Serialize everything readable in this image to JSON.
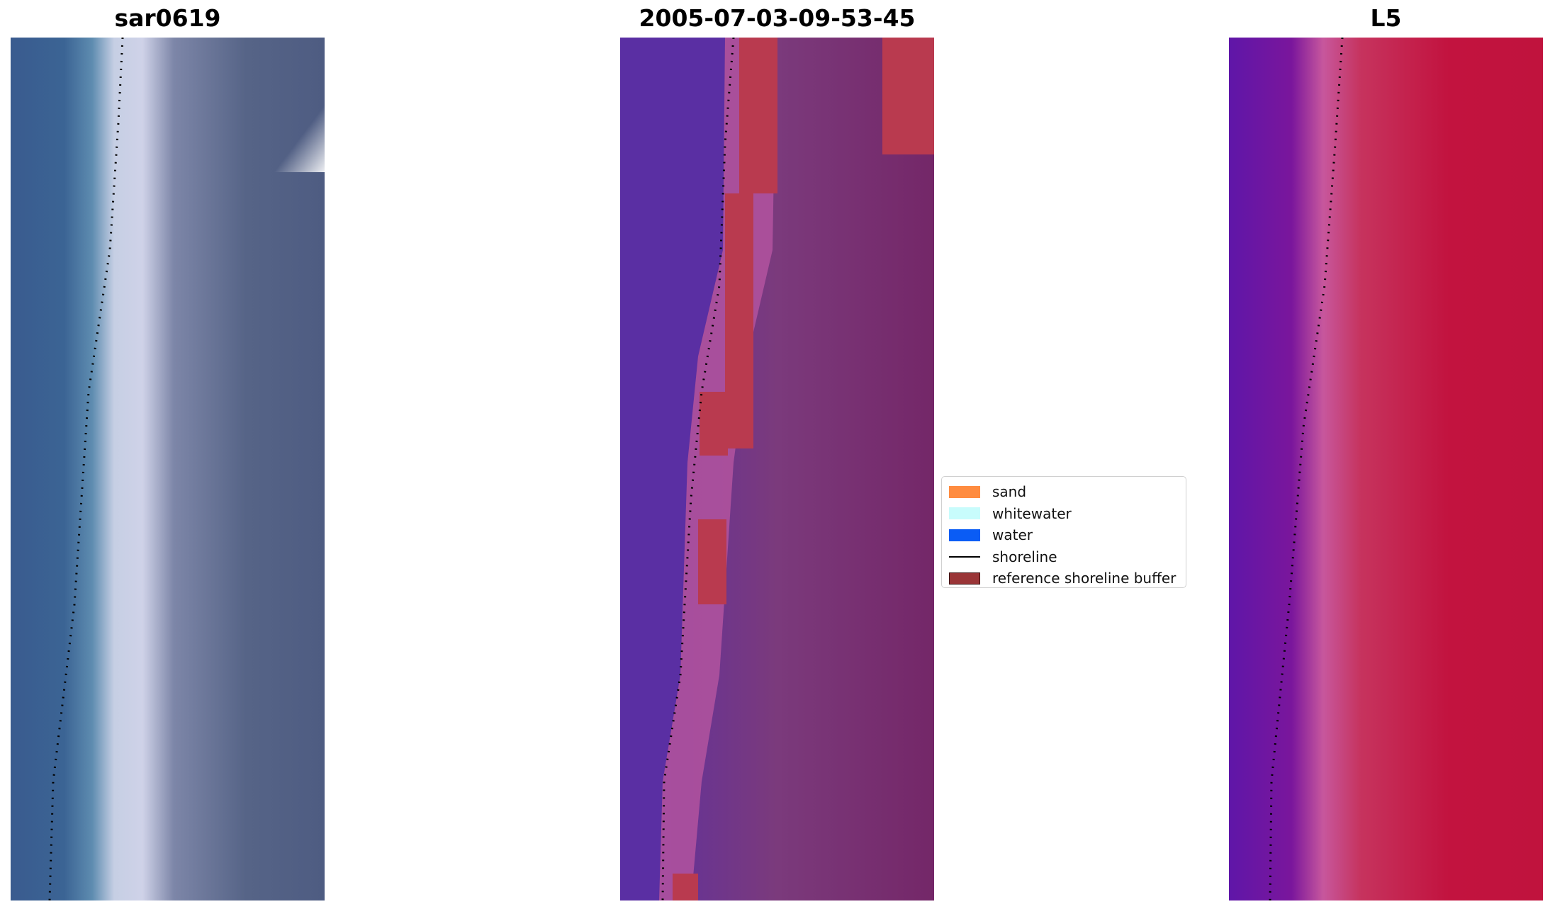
{
  "panels": [
    {
      "title": "sar0619",
      "image": "RGB true-colour satellite tile"
    },
    {
      "title": "2005-07-03-09-53-45",
      "image": "classified tile with reference shoreline buffer"
    },
    {
      "title": "L5",
      "image": "index tile (purple to red)"
    }
  ],
  "legend": {
    "items": [
      {
        "label": "sand",
        "color": "#ff8c40",
        "kind": "swatch"
      },
      {
        "label": "whitewater",
        "color": "#c8fcfc",
        "kind": "swatch"
      },
      {
        "label": "water",
        "color": "#0a5cf5",
        "kind": "swatch"
      },
      {
        "label": "shoreline",
        "color": "#000000",
        "kind": "line"
      },
      {
        "label": "reference shoreline buffer",
        "color": "#9a3537",
        "kind": "swatch"
      }
    ]
  }
}
